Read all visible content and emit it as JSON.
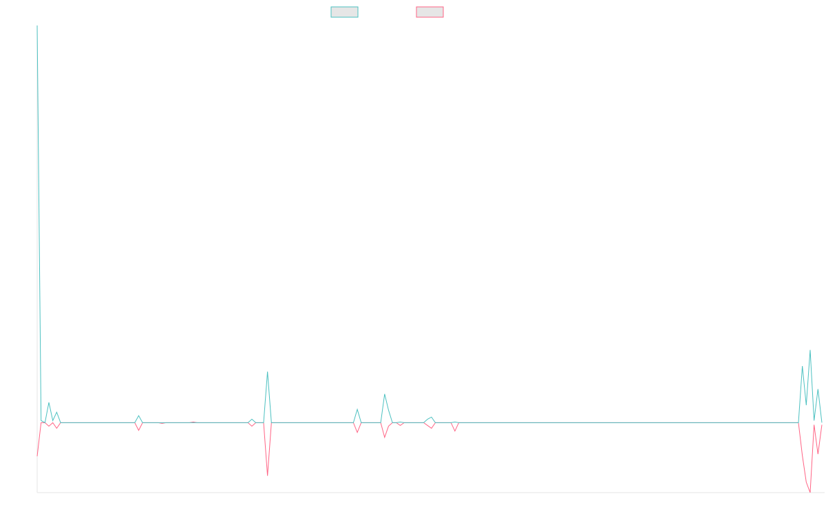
{
  "chart_data": {
    "type": "line",
    "title": "",
    "xlabel": "",
    "ylabel": "",
    "legend": {
      "position": "top-center",
      "labels_visible": false
    },
    "colors": {
      "series_1": "#4bc0c0",
      "series_2": "#ff6384",
      "legend_fill": "#e6e6e6",
      "axis": "#e6e6e6"
    },
    "x_count": 201,
    "ylim": [
      -10,
      56.8
    ],
    "grid": false,
    "series": [
      {
        "color": "#4bc0c0",
        "points": [
          [
            0,
            56.8
          ],
          [
            1,
            0.3
          ],
          [
            2,
            0
          ],
          [
            3,
            2.9
          ],
          [
            4,
            0.3
          ],
          [
            5,
            1.5
          ],
          [
            6,
            0
          ],
          [
            25,
            0
          ],
          [
            26,
            1
          ],
          [
            27,
            0
          ],
          [
            31,
            0
          ],
          [
            39,
            0
          ],
          [
            45,
            0
          ],
          [
            54,
            0
          ],
          [
            55,
            0.5
          ],
          [
            56,
            0
          ],
          [
            58,
            0
          ],
          [
            59,
            7.3
          ],
          [
            60,
            0
          ],
          [
            81,
            0
          ],
          [
            82,
            1.9
          ],
          [
            83,
            0
          ],
          [
            88,
            0
          ],
          [
            89,
            4.1
          ],
          [
            90,
            1.8
          ],
          [
            91,
            0
          ],
          [
            92,
            0
          ],
          [
            93,
            0.1
          ],
          [
            94,
            0
          ],
          [
            99,
            0
          ],
          [
            100,
            0.5
          ],
          [
            101,
            0.8
          ],
          [
            102,
            0
          ],
          [
            106,
            0
          ],
          [
            107,
            0.1
          ],
          [
            108,
            0
          ],
          [
            195,
            0
          ],
          [
            196,
            8.1
          ],
          [
            197,
            2.5
          ],
          [
            198,
            10.4
          ],
          [
            199,
            0.3
          ],
          [
            200,
            4.8
          ],
          [
            201,
            0
          ]
        ]
      },
      {
        "color": "#ff6384",
        "points": [
          [
            0,
            -4.8
          ],
          [
            1,
            0
          ],
          [
            2,
            0
          ],
          [
            3,
            -0.5
          ],
          [
            4,
            0
          ],
          [
            5,
            -0.8
          ],
          [
            6,
            0
          ],
          [
            25,
            0
          ],
          [
            26,
            -1.1
          ],
          [
            27,
            0
          ],
          [
            31,
            0
          ],
          [
            32,
            -0.1
          ],
          [
            33,
            0
          ],
          [
            39,
            0
          ],
          [
            40,
            0.1
          ],
          [
            41,
            0
          ],
          [
            54,
            0
          ],
          [
            55,
            -0.5
          ],
          [
            56,
            0
          ],
          [
            58,
            0
          ],
          [
            59,
            -7.6
          ],
          [
            60,
            0
          ],
          [
            81,
            0
          ],
          [
            82,
            -1.4
          ],
          [
            83,
            0
          ],
          [
            88,
            0
          ],
          [
            89,
            -2.1
          ],
          [
            90,
            -0.5
          ],
          [
            91,
            0
          ],
          [
            92,
            0
          ],
          [
            93,
            -0.4
          ],
          [
            94,
            0
          ],
          [
            99,
            0
          ],
          [
            100,
            -0.4
          ],
          [
            101,
            -0.8
          ],
          [
            102,
            0
          ],
          [
            106,
            0
          ],
          [
            107,
            -1.2
          ],
          [
            108,
            0
          ],
          [
            195,
            0
          ],
          [
            196,
            -4.7
          ],
          [
            197,
            -8.5
          ],
          [
            198,
            -10
          ],
          [
            199,
            -0.3
          ],
          [
            200,
            -4.5
          ],
          [
            201,
            -0.3
          ]
        ]
      }
    ]
  }
}
